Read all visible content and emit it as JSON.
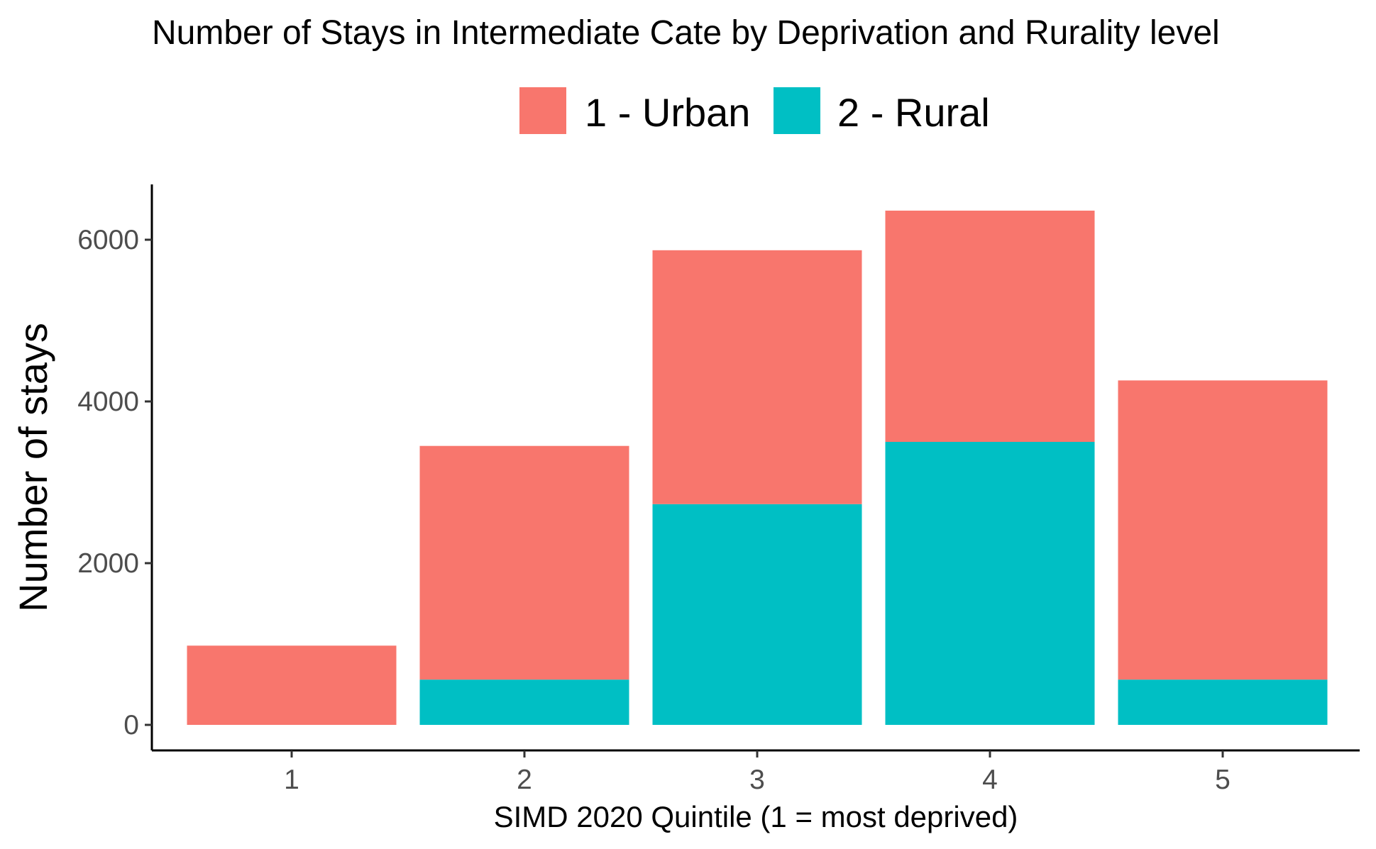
{
  "chart_data": {
    "type": "bar",
    "stacked": true,
    "title": "Number of Stays in Intermediate Cate by Deprivation and Rurality level",
    "xlabel": "SIMD 2020 Quintile (1 = most deprived)",
    "ylabel": "Number of stays",
    "categories": [
      "1",
      "2",
      "3",
      "4",
      "5"
    ],
    "ylim": [
      0,
      6700
    ],
    "yticks": [
      0,
      2000,
      4000,
      6000
    ],
    "grid": false,
    "legend_position": "top",
    "series": [
      {
        "name": "2 - Rural",
        "color": "#00BFC4",
        "values": [
          0,
          560,
          2730,
          3500,
          560
        ]
      },
      {
        "name": "1 - Urban",
        "color": "#F8766D",
        "values": [
          980,
          2890,
          3140,
          2860,
          3700
        ]
      }
    ]
  }
}
